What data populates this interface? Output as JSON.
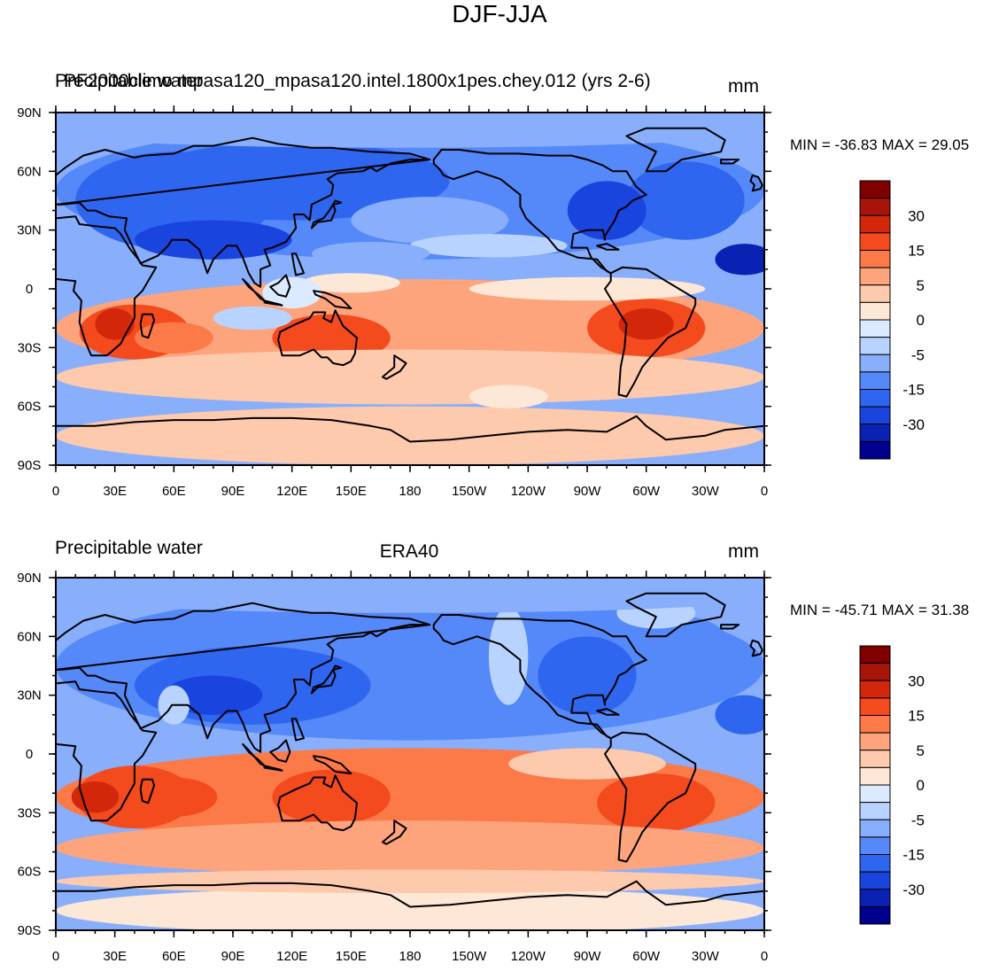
{
  "title": "DJF-JJA",
  "colors": {
    "ocean": "#8eb2ff",
    "coast": "#000000",
    "scale": [
      "#00008f",
      "#0a22b4",
      "#1a44de",
      "#2f66f0",
      "#5588f8",
      "#88aefc",
      "#b8d3ff",
      "#dceaff",
      "#fde7d6",
      "#fdcaad",
      "#fda47c",
      "#fb7a47",
      "#f34a1e",
      "#d2270a",
      "#a7150a",
      "#800000"
    ]
  },
  "axes": {
    "lat_labels": [
      "90N",
      "60N",
      "30N",
      "0",
      "30S",
      "60S",
      "90S"
    ],
    "lon_labels": [
      "0",
      "30E",
      "60E",
      "90E",
      "120E",
      "150E",
      "180",
      "150W",
      "120W",
      "90W",
      "60W",
      "30W",
      "0"
    ]
  },
  "colorbar": {
    "labels": [
      "30",
      "15",
      "5",
      "0",
      "-5",
      "-15",
      "-30"
    ]
  },
  "panels": [
    {
      "left_label": "Precipitable water",
      "left_overlay": "PF2000climo mpasa120_mpasa120.intel.1800x1pes.chey.012 (yrs 2-6)",
      "center_label": "",
      "right_label": "mm",
      "minmax": "MIN = -36.83 MAX =  29.05"
    },
    {
      "left_label": "Precipitable water",
      "left_overlay": "",
      "center_label": "ERA40",
      "right_label": "mm",
      "minmax": "MIN = -45.71 MAX =  31.38"
    }
  ]
}
